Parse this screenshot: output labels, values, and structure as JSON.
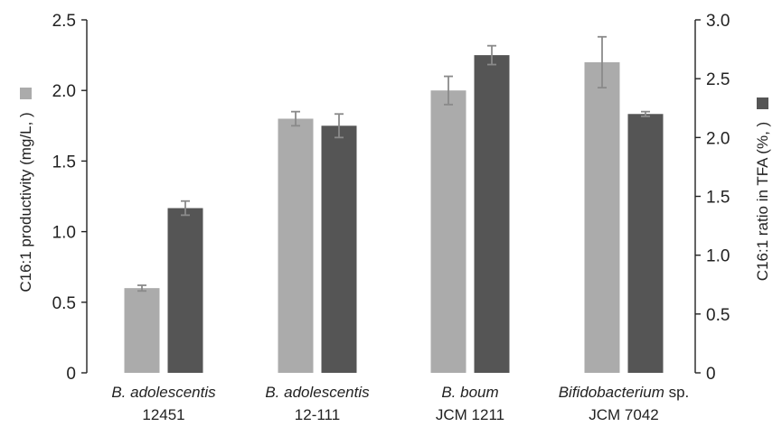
{
  "chart_data": {
    "type": "bar",
    "categories": [
      {
        "name": "B. adolescentis",
        "italic_suffix": "",
        "id": "12451"
      },
      {
        "name": "B. adolescentis",
        "italic_suffix": "",
        "id": "12-111"
      },
      {
        "name": "B. boum",
        "italic_suffix": "",
        "id": "JCM 1211"
      },
      {
        "name": "Bifidobacterium",
        "italic_suffix": " sp.",
        "id": "JCM 7042"
      }
    ],
    "series": [
      {
        "axis": "left",
        "color": "#ababab",
        "values": [
          0.6,
          1.8,
          2.0,
          2.2
        ],
        "errors": [
          0.02,
          0.05,
          0.1,
          0.18
        ]
      },
      {
        "axis": "right",
        "color": "#555555",
        "values": [
          1.4,
          2.1,
          2.7,
          2.2
        ],
        "errors": [
          0.06,
          0.1,
          0.08,
          0.02
        ]
      }
    ],
    "ylabel": "C16:1 productivity (mg/L, )",
    "y2label": "C16:1 ratio in TFA (%, )",
    "ylim": [
      0,
      2.5
    ],
    "y2lim": [
      0,
      3.0
    ],
    "yticks": [
      "0",
      "0.5",
      "1.0",
      "1.5",
      "2.0",
      "2.5"
    ],
    "y2ticks": [
      "0",
      "0.5",
      "1.0",
      "1.5",
      "2.0",
      "2.5",
      "3.0"
    ],
    "grid": false,
    "legend": "none",
    "error_color": "#8a8a8a"
  }
}
